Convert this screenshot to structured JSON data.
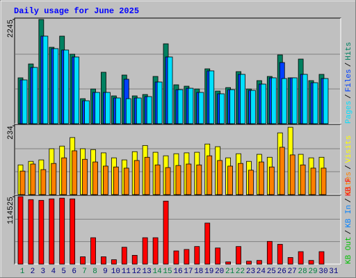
{
  "chart_data": [
    {
      "type": "bar",
      "title": "Daily usage for June 2025",
      "categories": [
        "1",
        "2",
        "3",
        "4",
        "5",
        "6",
        "7",
        "8",
        "9",
        "10",
        "11",
        "12",
        "13",
        "14",
        "15",
        "16",
        "17",
        "18",
        "19",
        "20",
        "21",
        "22",
        "23",
        "24",
        "25",
        "26",
        "27",
        "28",
        "29",
        "30",
        "31"
      ],
      "category_colors": [
        "#008040",
        "#000080",
        "#000080",
        "#000080",
        "#000080",
        "#000080",
        "#008040",
        "#008040",
        "#000080",
        "#000080",
        "#000080",
        "#000080",
        "#000080",
        "#008040",
        "#008040",
        "#000080",
        "#000080",
        "#000080",
        "#000080",
        "#000080",
        "#008040",
        "#008040",
        "#000080",
        "#000080",
        "#000080",
        "#000080",
        "#000080",
        "#008040",
        "#008040",
        "#000080",
        "#000080"
      ],
      "ylim": [
        0,
        2245
      ],
      "yticks": [
        2245
      ],
      "legend_separator": "/",
      "series": [
        {
          "name": "Hits",
          "color": "#008060",
          "values": [
            988,
            1287,
            2245,
            1646,
            1886,
            1497,
            539,
            748,
            1108,
            599,
            1048,
            599,
            629,
            1018,
            1721,
            838,
            808,
            748,
            1182,
            703,
            778,
            1122,
            748,
            928,
            1018,
            1482,
            988,
            1392,
            928,
            1063,
            0
          ]
        },
        {
          "name": "Files",
          "color": "#0040ff",
          "values": [
            943,
            1212,
            1886,
            1617,
            1587,
            1437,
            494,
            674,
            674,
            554,
            958,
            554,
            584,
            898,
            1437,
            733,
            763,
            674,
            1138,
            644,
            733,
            1063,
            718,
            853,
            988,
            1317,
            988,
            1063,
            883,
            973,
            0
          ]
        },
        {
          "name": "Pages",
          "color": "#00e0ff",
          "values": [
            943,
            1212,
            1886,
            1617,
            1587,
            1437,
            494,
            674,
            674,
            554,
            539,
            554,
            584,
            898,
            1437,
            733,
            763,
            674,
            1138,
            644,
            733,
            1063,
            718,
            853,
            988,
            973,
            988,
            1063,
            883,
            973,
            0
          ]
        }
      ]
    },
    {
      "type": "bar",
      "ylim": [
        0,
        234
      ],
      "yticks": [
        234
      ],
      "legend_separator": "/",
      "series": [
        {
          "name": "Visits",
          "color": "#ffff00",
          "values": [
            101,
            113,
            118,
            156,
            165,
            194,
            156,
            153,
            142,
            125,
            118,
            146,
            167,
            144,
            132,
            139,
            142,
            144,
            172,
            163,
            125,
            139,
            113,
            137,
            127,
            210,
            229,
            137,
            125,
            127,
            0
          ]
        },
        {
          "name": "Sites",
          "color": "#ff8000",
          "values": [
            80,
            104,
            85,
            106,
            125,
            149,
            120,
            111,
            97,
            94,
            90,
            116,
            127,
            101,
            92,
            99,
            104,
            101,
            132,
            116,
            97,
            106,
            83,
            111,
            94,
            161,
            135,
            101,
            90,
            90,
            0
          ]
        }
      ]
    },
    {
      "type": "bar",
      "ylim": [
        0,
        114525
      ],
      "yticks": [
        114525
      ],
      "legend_separator": "/",
      "series": [
        {
          "name": "KB F",
          "color": "#ff0000",
          "values": [
            114525,
            109545,
            108300,
            110790,
            112035,
            110790,
            12450,
            44820,
            12450,
            7470,
            28635,
            14940,
            44820,
            44820,
            107055,
            22410,
            24900,
            29880,
            69720,
            27390,
            3735,
            29880,
            4980,
            6225,
            38595,
            33615,
            11205,
            21165,
            6225,
            21165,
            0
          ]
        },
        {
          "name": "KB In",
          "color": "#0080ff",
          "values": [
            0,
            0,
            0,
            0,
            0,
            0,
            0,
            0,
            0,
            0,
            0,
            0,
            0,
            0,
            0,
            0,
            0,
            0,
            0,
            0,
            0,
            0,
            0,
            0,
            0,
            0,
            0,
            0,
            0,
            0,
            0
          ]
        },
        {
          "name": "KB Out",
          "color": "#00c000",
          "values": [
            0,
            0,
            0,
            0,
            0,
            0,
            0,
            0,
            0,
            0,
            0,
            0,
            0,
            0,
            0,
            0,
            0,
            0,
            0,
            0,
            0,
            0,
            0,
            0,
            0,
            0,
            0,
            0,
            0,
            0,
            0
          ]
        }
      ]
    }
  ]
}
